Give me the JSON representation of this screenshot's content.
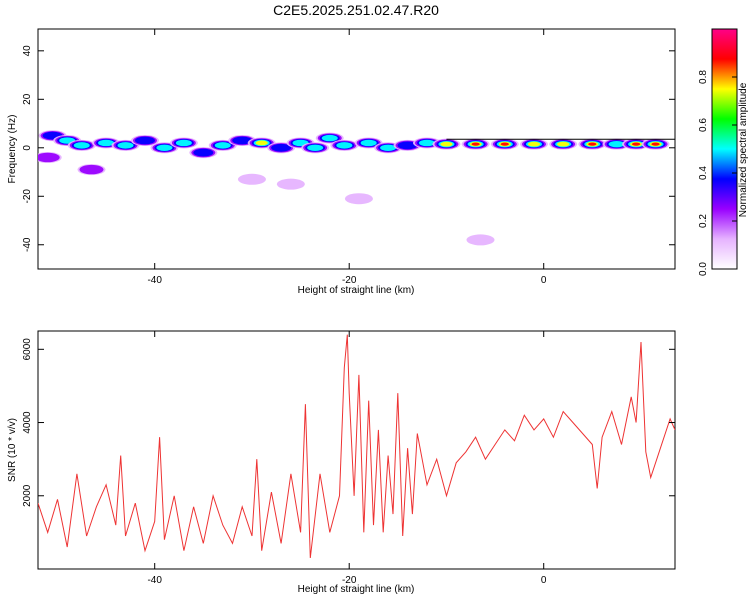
{
  "figure": {
    "title": "C2E5.2025.251.02.47.R20"
  },
  "chart_data": [
    {
      "type": "heatmap",
      "title": "",
      "xlabel": "Height of straight line (km)",
      "ylabel": "Frequency (Hz)",
      "xlim": [
        -52,
        13.5
      ],
      "ylim": [
        -50,
        49
      ],
      "xticks": [
        -40,
        -20,
        0
      ],
      "yticks": [
        -40,
        -20,
        0,
        20,
        40
      ],
      "colorbar": {
        "label": "Normalized spectral amplitude",
        "range": [
          0,
          1
        ],
        "ticks": [
          0.0,
          0.2,
          0.4,
          0.6,
          0.8
        ],
        "colors": [
          "#ffffff",
          "#e6b3ff",
          "#9900ff",
          "#0000ff",
          "#00ffff",
          "#00ff00",
          "#ffff00",
          "#ff0000",
          "#ff0088"
        ]
      },
      "reference_line_hz": 3.5,
      "blobs": [
        {
          "x": -51,
          "f": -4,
          "a": 0.35
        },
        {
          "x": -50.5,
          "f": 5,
          "a": 0.55
        },
        {
          "x": -49,
          "f": 3,
          "a": 0.7
        },
        {
          "x": -47.5,
          "f": 1,
          "a": 0.6
        },
        {
          "x": -46.5,
          "f": -9,
          "a": 0.3
        },
        {
          "x": -45,
          "f": 2,
          "a": 0.65
        },
        {
          "x": -43,
          "f": 1,
          "a": 0.6
        },
        {
          "x": -41,
          "f": 3,
          "a": 0.55
        },
        {
          "x": -39,
          "f": 0,
          "a": 0.6
        },
        {
          "x": -37,
          "f": 2,
          "a": 0.7
        },
        {
          "x": -35,
          "f": -2,
          "a": 0.5
        },
        {
          "x": -33,
          "f": 1,
          "a": 0.6
        },
        {
          "x": -31,
          "f": 3,
          "a": 0.55
        },
        {
          "x": -30,
          "f": -13,
          "a": 0.25
        },
        {
          "x": -29,
          "f": 2,
          "a": 0.8
        },
        {
          "x": -27,
          "f": 0,
          "a": 0.55
        },
        {
          "x": -26,
          "f": -15,
          "a": 0.2
        },
        {
          "x": -25,
          "f": 2,
          "a": 0.7
        },
        {
          "x": -23.5,
          "f": 0,
          "a": 0.7
        },
        {
          "x": -22,
          "f": 4,
          "a": 0.6
        },
        {
          "x": -20.5,
          "f": 1,
          "a": 0.65
        },
        {
          "x": -19,
          "f": -21,
          "a": 0.2
        },
        {
          "x": -18,
          "f": 2,
          "a": 0.7
        },
        {
          "x": -16,
          "f": 0,
          "a": 0.6
        },
        {
          "x": -14,
          "f": 1,
          "a": 0.55
        },
        {
          "x": -12,
          "f": 2,
          "a": 0.6
        },
        {
          "x": -10,
          "f": 1.5,
          "a": 0.8
        },
        {
          "x": -7,
          "f": 1.5,
          "a": 0.95
        },
        {
          "x": -4,
          "f": 1.5,
          "a": 0.95
        },
        {
          "x": -1,
          "f": 1.5,
          "a": 0.75
        },
        {
          "x": 2,
          "f": 1.5,
          "a": 0.8
        },
        {
          "x": 5,
          "f": 1.5,
          "a": 0.9
        },
        {
          "x": 7.5,
          "f": 1.5,
          "a": 0.6
        },
        {
          "x": 9.5,
          "f": 1.5,
          "a": 0.9
        },
        {
          "x": 11.5,
          "f": 1.5,
          "a": 0.95
        },
        {
          "x": -6.5,
          "f": -38,
          "a": 0.15
        }
      ]
    },
    {
      "type": "line",
      "title": "",
      "xlabel": "Height of straight line (km)",
      "ylabel": "SNR (10 * v/v)",
      "xlim": [
        -52,
        13.5
      ],
      "ylim": [
        0,
        6500
      ],
      "xticks": [
        -40,
        -20,
        0
      ],
      "yticks": [
        2000,
        4000,
        6000
      ],
      "series": [
        {
          "color": "#ee3333",
          "x": [
            -52,
            -51,
            -50,
            -49,
            -48,
            -47,
            -46,
            -45,
            -44,
            -43.5,
            -43,
            -42,
            -41,
            -40,
            -39.5,
            -39,
            -38,
            -37,
            -36,
            -35,
            -34,
            -33,
            -32,
            -31,
            -30,
            -29.5,
            -29,
            -28,
            -27,
            -26,
            -25,
            -24.5,
            -24,
            -23,
            -22,
            -21,
            -20.5,
            -20.2,
            -20,
            -19.5,
            -19,
            -18.5,
            -18,
            -17.5,
            -17,
            -16.5,
            -16,
            -15.5,
            -15,
            -14.5,
            -14,
            -13.5,
            -13,
            -12,
            -11,
            -10,
            -9,
            -8,
            -7,
            -6,
            -5,
            -4,
            -3,
            -2,
            -1,
            0,
            1,
            2,
            3,
            4,
            5,
            5.5,
            6,
            7,
            8,
            9,
            9.5,
            10,
            10.5,
            11,
            12,
            13,
            13.5
          ],
          "y": [
            1800,
            1000,
            1900,
            600,
            2600,
            900,
            1700,
            2300,
            1200,
            3100,
            900,
            1800,
            500,
            1300,
            3600,
            800,
            2000,
            500,
            1700,
            700,
            2000,
            1200,
            700,
            1700,
            900,
            3000,
            500,
            2100,
            700,
            2600,
            1000,
            4500,
            300,
            2600,
            1000,
            2000,
            5500,
            6400,
            4800,
            2000,
            5300,
            1000,
            4600,
            1200,
            3800,
            1000,
            3100,
            1500,
            4800,
            900,
            3300,
            1500,
            3700,
            2300,
            3000,
            2000,
            2900,
            3200,
            3600,
            3000,
            3400,
            3800,
            3500,
            4200,
            3800,
            4100,
            3600,
            4300,
            4000,
            3700,
            3400,
            2200,
            3600,
            4300,
            3400,
            4700,
            4000,
            6200,
            3200,
            2500,
            3300,
            4100,
            3800
          ]
        }
      ]
    }
  ]
}
